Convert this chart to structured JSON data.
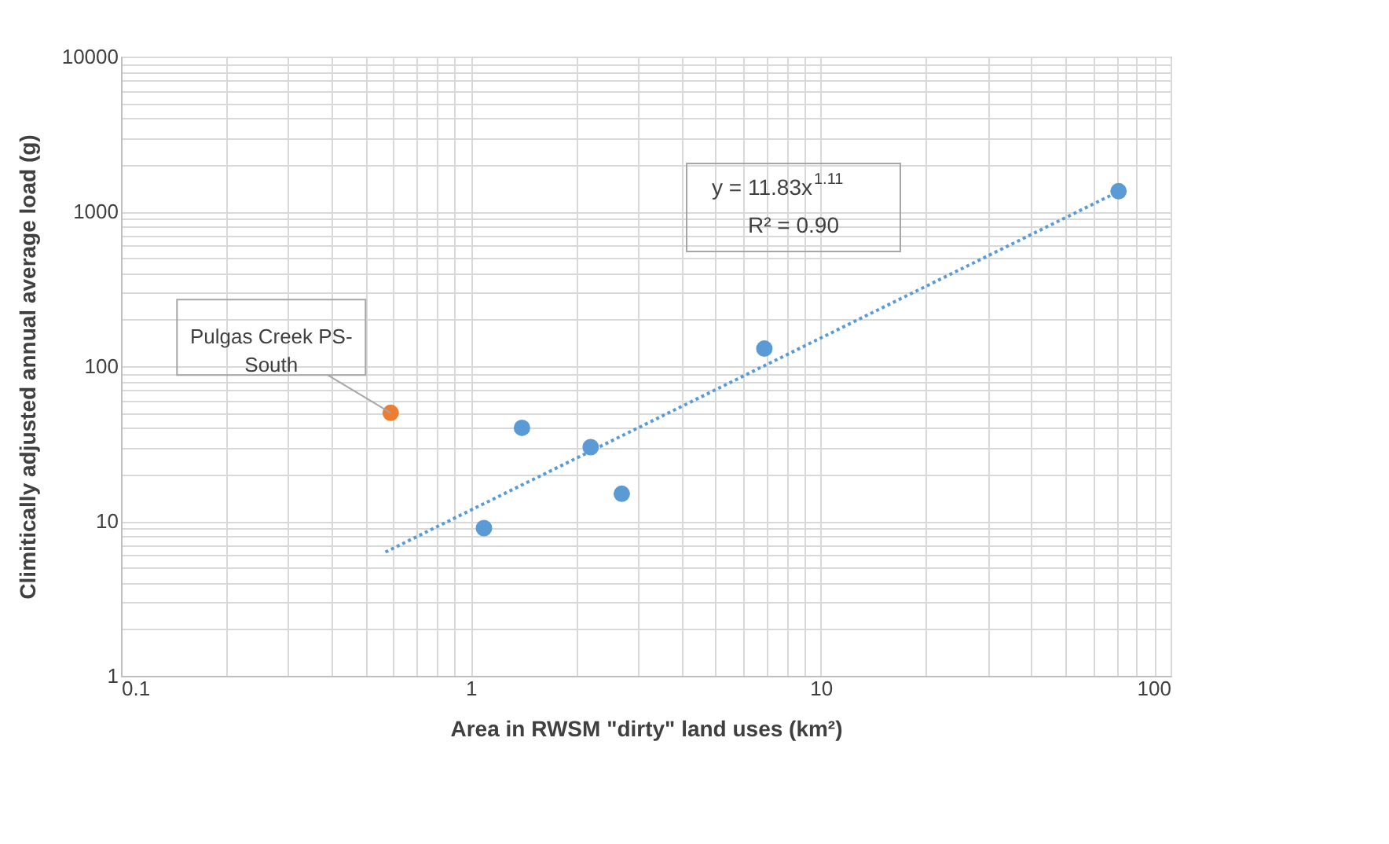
{
  "chart_data": {
    "type": "scatter",
    "xlabel": "Area in RWSM \"dirty\" land uses (km²)",
    "ylabel": "Climitically adjusted annual average load (g)",
    "log": "xy",
    "grid": true,
    "marker": "circle",
    "xlim": [
      0.1,
      100
    ],
    "ylim": [
      1,
      10000
    ],
    "xticks": [
      0.1,
      {
        "value": 0.2,
        "label": null
      },
      {
        "value": 0.3,
        "label": null
      },
      {
        "value": 0.4,
        "label": null
      },
      {
        "value": 0.5,
        "label": null
      },
      {
        "value": 0.6,
        "label": null
      },
      {
        "value": 0.7,
        "label": null
      },
      {
        "value": 0.8,
        "label": null
      },
      {
        "value": 0.9,
        "label": null
      },
      1,
      {
        "value": 2,
        "label": null
      },
      {
        "value": 3,
        "label": null
      },
      {
        "value": 4,
        "label": null
      },
      {
        "value": 5,
        "label": null
      },
      {
        "value": 6,
        "label": null
      },
      {
        "value": 7,
        "label": null
      },
      {
        "value": 8,
        "label": null
      },
      {
        "value": 9,
        "label": null
      },
      10,
      {
        "value": 20,
        "label": null
      },
      {
        "value": 30,
        "label": null
      },
      {
        "value": 40,
        "label": null
      },
      {
        "value": 50,
        "label": null
      },
      {
        "value": 60,
        "label": null
      },
      {
        "value": 70,
        "label": null
      },
      {
        "value": 80,
        "label": null
      },
      {
        "value": 90,
        "label": null
      },
      100
    ],
    "yticks": [
      1,
      {
        "value": 2,
        "label": null
      },
      {
        "value": 3,
        "label": null
      },
      {
        "value": 4,
        "label": null
      },
      {
        "value": 5,
        "label": null
      },
      {
        "value": 6,
        "label": null
      },
      {
        "value": 7,
        "label": null
      },
      {
        "value": 8,
        "label": null
      },
      {
        "value": 9,
        "label": null
      },
      10,
      {
        "value": 20,
        "label": null
      },
      {
        "value": 30,
        "label": null
      },
      {
        "value": 40,
        "label": null
      },
      {
        "value": 50,
        "label": null
      },
      {
        "value": 60,
        "label": null
      },
      {
        "value": 70,
        "label": null
      },
      {
        "value": 80,
        "label": null
      },
      {
        "value": 90,
        "label": null
      },
      100,
      {
        "value": 200,
        "label": null
      },
      {
        "value": 300,
        "label": null
      },
      {
        "value": 400,
        "label": null
      },
      {
        "value": 500,
        "label": null
      },
      {
        "value": 600,
        "label": null
      },
      {
        "value": 700,
        "label": null
      },
      {
        "value": 800,
        "label": null
      },
      {
        "value": 900,
        "label": null
      },
      1000,
      {
        "value": 2000,
        "label": null
      },
      {
        "value": 3000,
        "label": null
      },
      {
        "value": 4000,
        "label": null
      },
      {
        "value": 5000,
        "label": null
      },
      {
        "value": 6000,
        "label": null
      },
      {
        "value": 7000,
        "label": null
      },
      {
        "value": 8000,
        "label": null
      },
      {
        "value": 9000,
        "label": null
      },
      10000
    ],
    "series": [
      {
        "color": "#5b9bd5",
        "x": [
          1.4,
          1.09,
          2.2,
          2.7,
          6.9,
          71
        ],
        "values": [
          40,
          9,
          30,
          15,
          130,
          1350
        ]
      },
      {
        "color": "#ed7d31",
        "x": [
          0.59
        ],
        "values": [
          50
        ]
      },
      {
        "type": "line",
        "color": "#5b9bd5",
        "line_style": "dotted",
        "marker": "none",
        "x": [
          0.57,
          71
        ],
        "values": [
          6.3,
          1343
        ]
      }
    ],
    "annotations": [
      "y = 11.83x$^{1.11}$",
      "R² = 0.90",
      {
        "text": "Pulgas Creek PS-South",
        "x": 0.59,
        "y": 50
      }
    ]
  }
}
